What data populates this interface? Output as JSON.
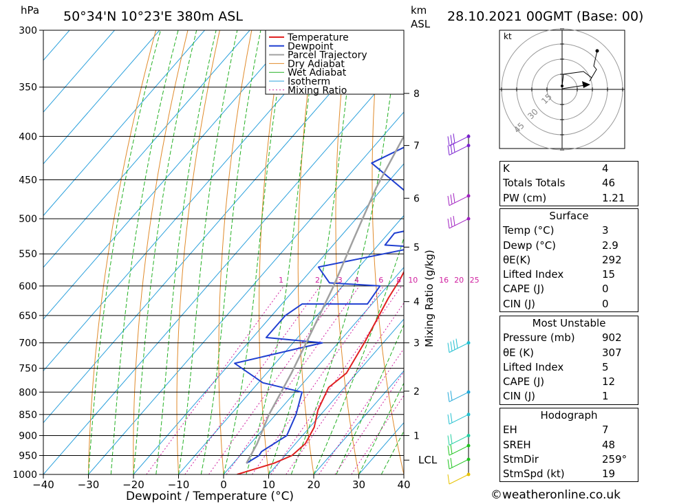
{
  "header": {
    "location": "50°34'N  10°23'E  380m  ASL",
    "datetime": "28.10.2021  00GMT  (Base: 00)",
    "hpa_label": "hPa",
    "km_label": "km",
    "asl_label": "ASL"
  },
  "legend": [
    "Temperature",
    "Dewpoint",
    "Parcel Trajectory",
    "Dry Adiabat",
    "Wet Adiabat",
    "Isotherm",
    "Mixing Ratio"
  ],
  "colors": {
    "temperature": "#e02020",
    "dewpoint": "#1f3fd0",
    "parcel": "#a0a0a0",
    "dry_adiabat": "#e08a2a",
    "wet_adiabat": "#22b022",
    "isotherm": "#2aa0dc",
    "mixing_ratio": "#d020a0"
  },
  "chart_data": {
    "type": "line",
    "title": "50°34'N  10°23'E  380m  ASL",
    "xlabel": "Dewpoint / Temperature (°C)",
    "ylabel": "hPa",
    "xlim": [
      -40,
      40
    ],
    "ylim": [
      1000,
      300
    ],
    "log_y": true,
    "x_ticks": [
      -40,
      -30,
      -20,
      -10,
      0,
      10,
      20,
      30,
      40
    ],
    "x_tick_labels": [
      "−40",
      "−30",
      "−20",
      "−10",
      "0",
      "10",
      "20",
      "30",
      "40"
    ],
    "pressure_levels": [
      300,
      350,
      400,
      450,
      500,
      550,
      600,
      650,
      700,
      750,
      800,
      850,
      900,
      950,
      1000
    ],
    "km_axis": {
      "label": "km ASL",
      "ticks": [
        {
          "km": "1",
          "p": 900
        },
        {
          "km": "2",
          "p": 798
        },
        {
          "km": "3",
          "p": 700
        },
        {
          "km": "4",
          "p": 626
        },
        {
          "km": "5",
          "p": 540
        },
        {
          "km": "6",
          "p": 473
        },
        {
          "km": "7",
          "p": 410
        },
        {
          "km": "8",
          "p": 356
        }
      ],
      "lcl": {
        "label": "LCL",
        "p": 962
      }
    },
    "mixing_ratio_axis": {
      "label": "Mixing Ratio (g/kg)",
      "values": [
        "1",
        "2",
        "3",
        "4",
        "6",
        "8",
        "10",
        "16",
        "20",
        "25"
      ]
    },
    "series": [
      {
        "name": "Temperature",
        "x": [
          3,
          9,
          11.5,
          12.2,
          11,
          8.5,
          6.5,
          7.7,
          5.8,
          4.2,
          2.5,
          1.5,
          -0.5,
          -1.8,
          -3.5,
          -5,
          -7,
          -10,
          -13
        ],
        "y": [
          1000,
          970,
          950,
          920,
          880,
          840,
          790,
          760,
          700,
          660,
          620,
          590,
          550,
          520,
          480,
          450,
          420,
          360,
          300
        ]
      },
      {
        "name": "Dewpoint",
        "x": [
          2.9,
          4.2,
          4,
          6.5,
          4.5,
          1.5,
          -9,
          -19,
          -3.5,
          -17,
          -17,
          -15.5,
          -1,
          -1.7,
          -13.5,
          -19,
          -1,
          -8.5,
          -8.7,
          -2.3,
          -7.7,
          -7.3,
          -8,
          -8.7,
          -27.3,
          -20.3,
          -21.3,
          -20,
          -12,
          -9.8,
          -13,
          -11,
          -13,
          -9.5,
          -13,
          -18.5
        ],
        "y": [
          970,
          950,
          940,
          900,
          850,
          800,
          780,
          740,
          700,
          690,
          650,
          630,
          630,
          600,
          595,
          570,
          540,
          537,
          520,
          510,
          506,
          500,
          495,
          480,
          430,
          400,
          385,
          380,
          348,
          344,
          340,
          333,
          320,
          310,
          302,
          298
        ]
      },
      {
        "name": "Parcel Trajectory",
        "x": [
          2.9,
          1.5,
          -1.5,
          -4.5,
          -8,
          -12,
          -16.5,
          -21.5,
          -26,
          -31
        ],
        "y": [
          970,
          920,
          850,
          760,
          680,
          600,
          530,
          460,
          390,
          310
        ]
      }
    ],
    "winds": [
      {
        "p": 1000,
        "barbs": "light",
        "color": "#e6c200"
      },
      {
        "p": 960,
        "barbs": "2",
        "color": "#1cc41c"
      },
      {
        "p": 925,
        "barbs": "2",
        "color": "#1cc41c"
      },
      {
        "p": 900,
        "barbs": "2",
        "color": "#22cfa0"
      },
      {
        "p": 850,
        "barbs": "2",
        "color": "#22c0d0"
      },
      {
        "p": 800,
        "barbs": "2",
        "color": "#22a8d8"
      },
      {
        "p": 700,
        "barbs": "4",
        "color": "#22c0d0"
      },
      {
        "p": 500,
        "barbs": "3",
        "color": "#a020c0"
      },
      {
        "p": 470,
        "barbs": "3",
        "color": "#a020c0"
      },
      {
        "p": 410,
        "barbs": "3",
        "color": "#7a20d0"
      },
      {
        "p": 400,
        "barbs": "3",
        "color": "#7a20d0"
      }
    ],
    "hodograph": {
      "unit_label": "kt",
      "ring_labels": [
        "15",
        "30",
        "45"
      ]
    }
  },
  "indices": {
    "rows": [
      {
        "label": "K",
        "value": "4"
      },
      {
        "label": "Totals Totals",
        "value": "46"
      },
      {
        "label": "PW (cm)",
        "value": "1.21"
      }
    ]
  },
  "surface": {
    "title": "Surface",
    "rows": [
      {
        "label": "Temp (°C)",
        "value": "3"
      },
      {
        "label": "Dewp (°C)",
        "value": "2.9"
      },
      {
        "label": "θE(K)",
        "value": "292"
      },
      {
        "label": "Lifted Index",
        "value": "15"
      },
      {
        "label": "CAPE (J)",
        "value": "0"
      },
      {
        "label": "CIN (J)",
        "value": "0"
      }
    ]
  },
  "most_unstable": {
    "title": "Most Unstable",
    "rows": [
      {
        "label": "Pressure (mb)",
        "value": "902"
      },
      {
        "label": "θE (K)",
        "value": "307"
      },
      {
        "label": "Lifted Index",
        "value": "5"
      },
      {
        "label": "CAPE (J)",
        "value": "12"
      },
      {
        "label": "CIN (J)",
        "value": "1"
      }
    ]
  },
  "hodograph_panel": {
    "title": "Hodograph",
    "rows": [
      {
        "label": "EH",
        "value": "7"
      },
      {
        "label": "SREH",
        "value": "48"
      },
      {
        "label": "StmDir",
        "value": "259°"
      },
      {
        "label": "StmSpd (kt)",
        "value": "19"
      }
    ]
  },
  "footer": "©weatheronline.co.uk"
}
